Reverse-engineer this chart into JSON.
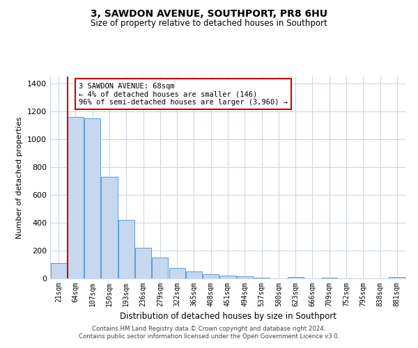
{
  "title": "3, SAWDON AVENUE, SOUTHPORT, PR8 6HU",
  "subtitle": "Size of property relative to detached houses in Southport",
  "xlabel": "Distribution of detached houses by size in Southport",
  "ylabel": "Number of detached properties",
  "bar_labels": [
    "21sqm",
    "64sqm",
    "107sqm",
    "150sqm",
    "193sqm",
    "236sqm",
    "279sqm",
    "322sqm",
    "365sqm",
    "408sqm",
    "451sqm",
    "494sqm",
    "537sqm",
    "580sqm",
    "623sqm",
    "666sqm",
    "709sqm",
    "752sqm",
    "795sqm",
    "838sqm",
    "881sqm"
  ],
  "bar_values": [
    110,
    1160,
    1150,
    730,
    420,
    220,
    150,
    75,
    50,
    30,
    20,
    15,
    5,
    0,
    8,
    0,
    5,
    0,
    0,
    0,
    10
  ],
  "bar_color": "#c5d8f0",
  "bar_edge_color": "#5b9bd5",
  "vline_x_index": 1,
  "vline_color": "#cc0000",
  "annotation_title": "3 SAWDON AVENUE: 68sqm",
  "annotation_line1": "← 4% of detached houses are smaller (146)",
  "annotation_line2": "96% of semi-detached houses are larger (3,960) →",
  "annotation_box_color": "#ffffff",
  "annotation_box_edge": "#cc0000",
  "ylim": [
    0,
    1450
  ],
  "yticks": [
    0,
    200,
    400,
    600,
    800,
    1000,
    1200,
    1400
  ],
  "footer1": "Contains HM Land Registry data © Crown copyright and database right 2024.",
  "footer2": "Contains public sector information licensed under the Open Government Licence v3.0.",
  "bg_color": "#ffffff",
  "grid_color": "#ccd6e8"
}
